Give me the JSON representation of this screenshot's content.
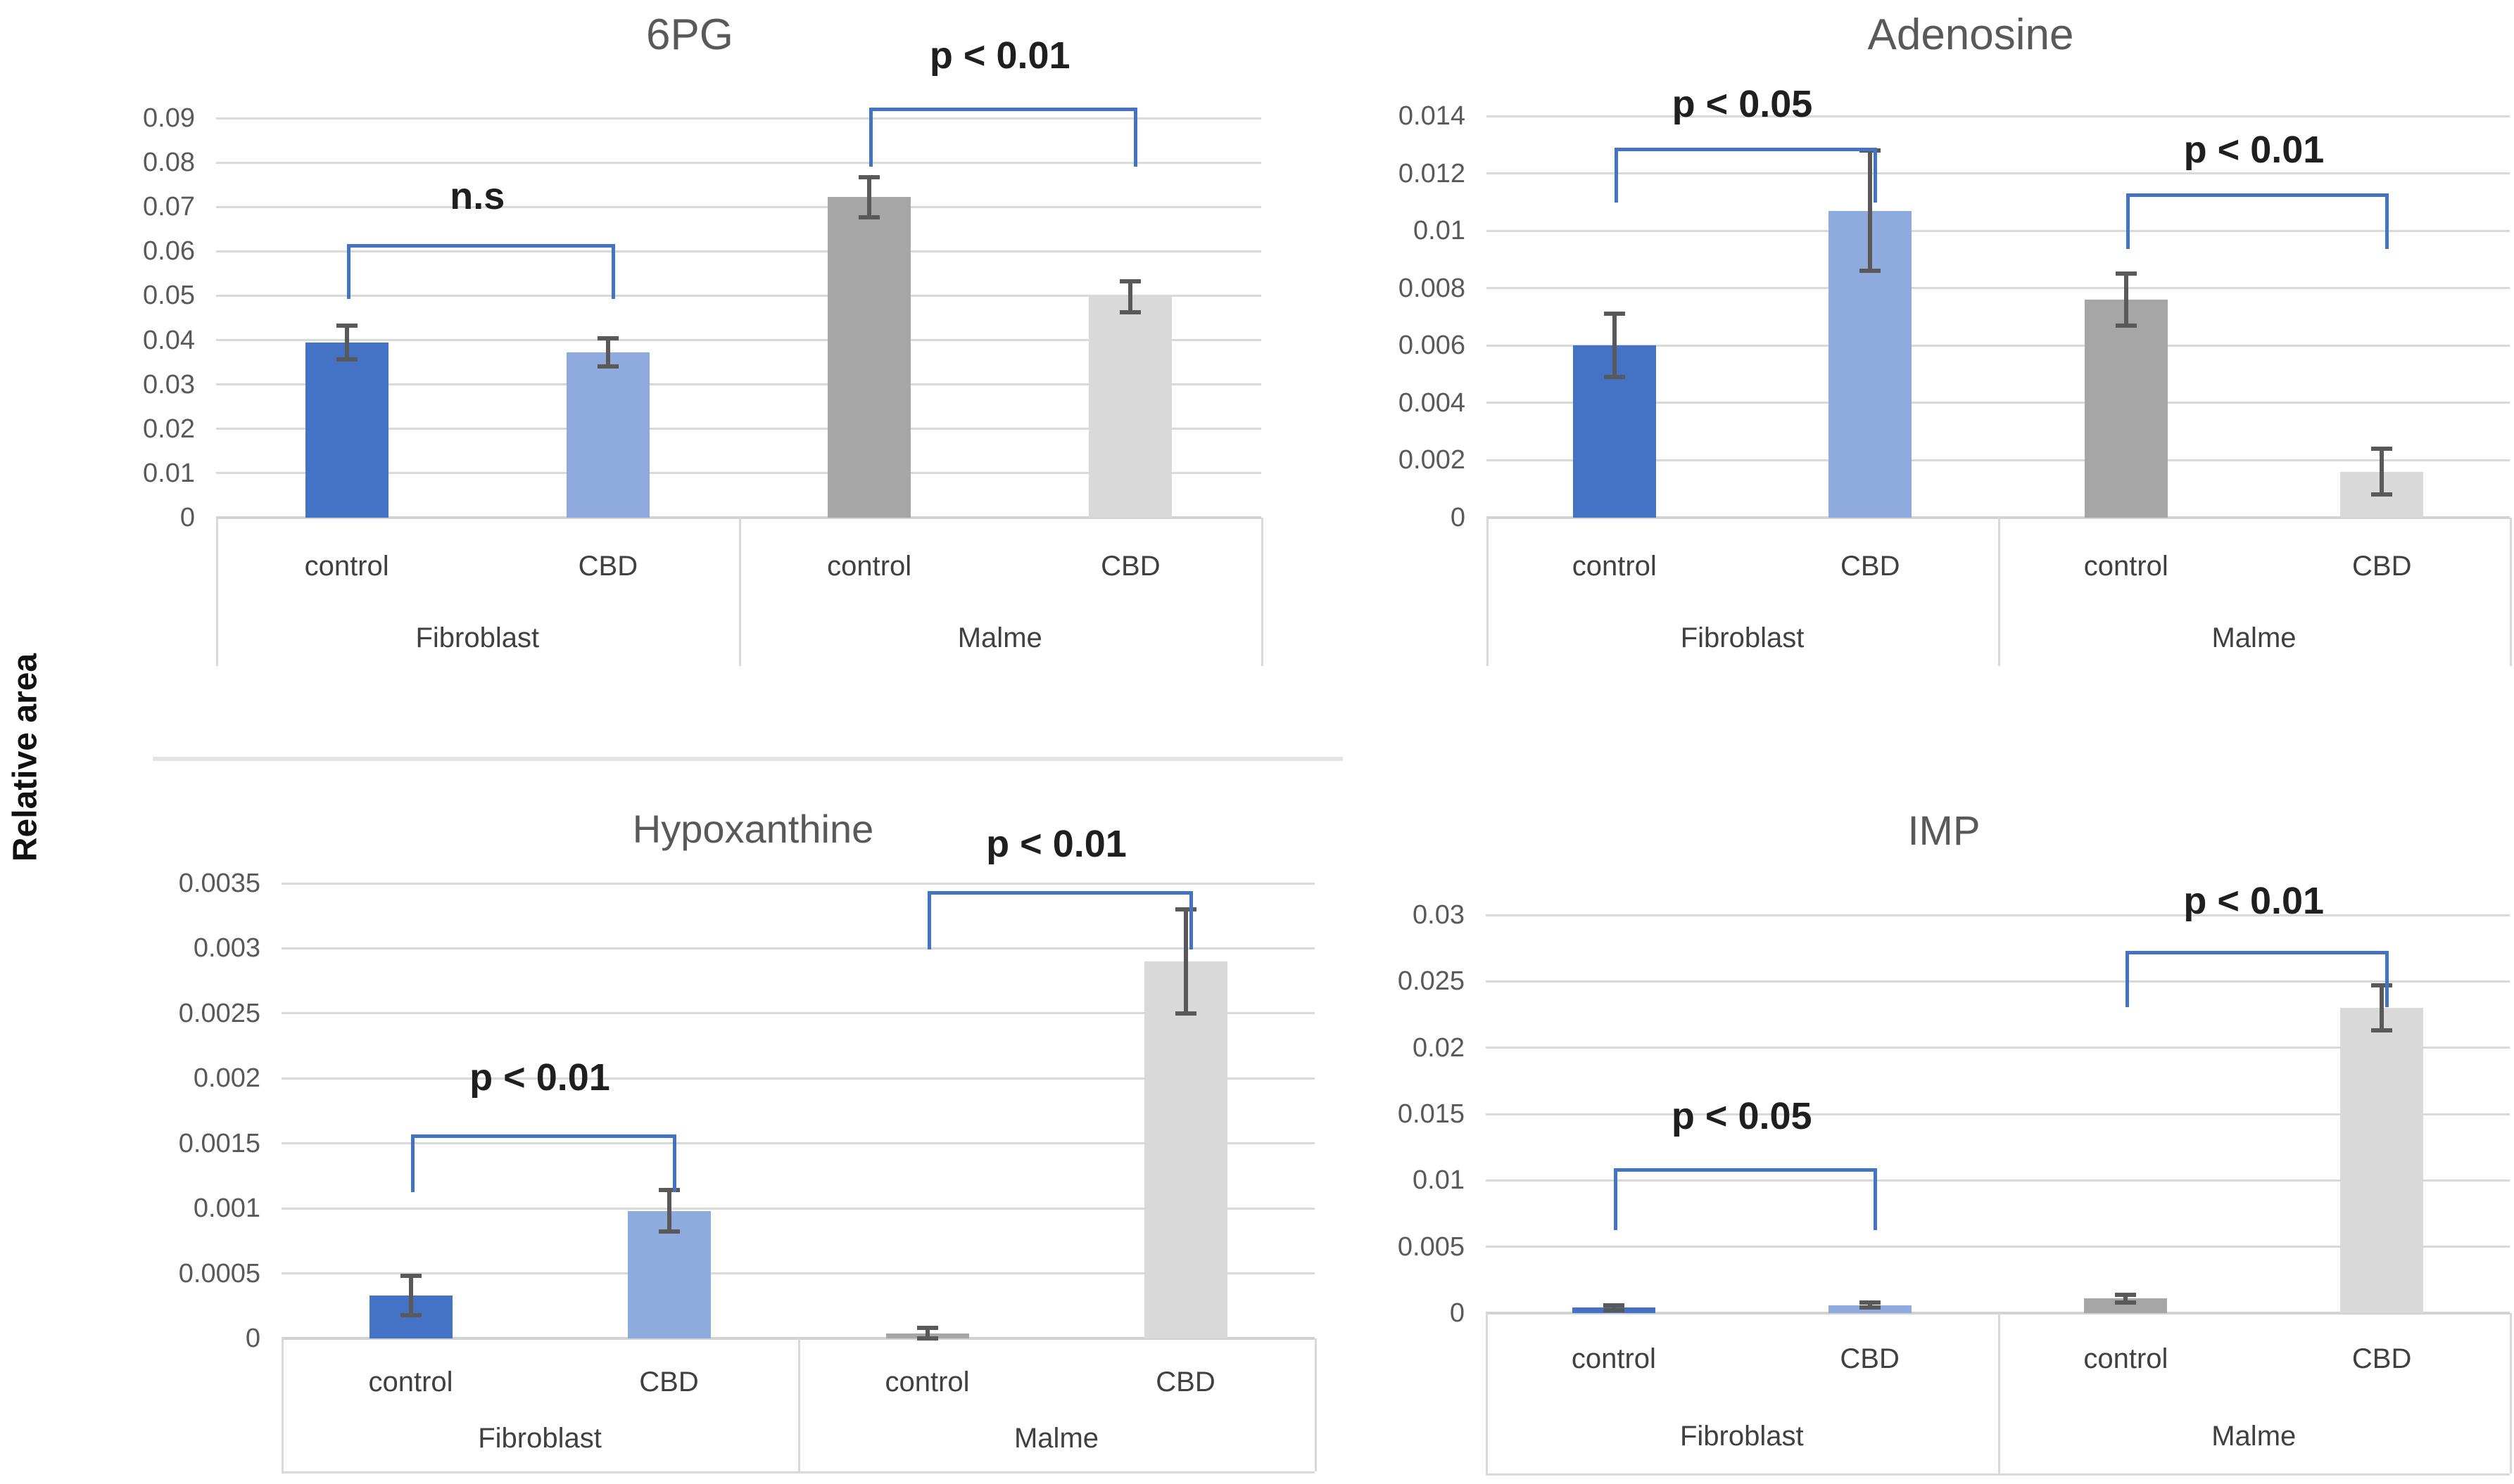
{
  "figure": {
    "shared_y_label": "Relative area"
  },
  "colors": {
    "bar_blue_dark": "#4472C4",
    "bar_blue_light": "#8FAADC",
    "bar_gray_dark": "#A6A6A6",
    "bar_gray_light": "#D9D9D9",
    "gridline": "#D9D9D9",
    "axis_border": "#D9D9D9",
    "error_bar": "#595959",
    "bracket": "#4472C4",
    "title_text": "#595959",
    "tick_text": "#595959",
    "category_text": "#404040",
    "annotation_text": "#1f1f1f"
  },
  "chart_data": [
    {
      "id": "sixpg",
      "type": "bar",
      "title": "6PG",
      "ylabel": "Relative area",
      "ylim": [
        0,
        0.09
      ],
      "ytick_step": 0.01,
      "ytick_labels": [
        "0",
        "0.01",
        "0.02",
        "0.03",
        "0.04",
        "0.05",
        "0.06",
        "0.07",
        "0.08",
        "0.09"
      ],
      "grid": true,
      "legend": "none",
      "categories": [
        "Fibroblast",
        "Malme"
      ],
      "subcategories": [
        "control",
        "CBD"
      ],
      "series": [
        {
          "group": "Fibroblast",
          "condition": "control",
          "value": 0.0395,
          "error": 0.0038,
          "color": "bar_blue_dark"
        },
        {
          "group": "Fibroblast",
          "condition": "CBD",
          "value": 0.0372,
          "error": 0.0032,
          "color": "bar_blue_light"
        },
        {
          "group": "Malme",
          "condition": "control",
          "value": 0.0722,
          "error": 0.0045,
          "color": "bar_gray_dark"
        },
        {
          "group": "Malme",
          "condition": "CBD",
          "value": 0.0497,
          "error": 0.0035,
          "color": "bar_gray_light"
        }
      ],
      "annotations": [
        {
          "text": "n.s",
          "bars": [
            0,
            1
          ],
          "bracket_top": 0.0616,
          "bracket_bottom": 0.05,
          "label_y": 0.0722
        },
        {
          "text": "p < 0.01",
          "bars": [
            2,
            3
          ],
          "bracket_top": 0.0924,
          "bracket_bottom": 0.0798,
          "label_y": 0.104
        }
      ]
    },
    {
      "id": "adenosine",
      "type": "bar",
      "title": "Adenosine",
      "ylabel": "Relative area",
      "ylim": [
        0,
        0.014
      ],
      "ytick_step": 0.002,
      "ytick_labels": [
        "0",
        "0.002",
        "0.004",
        "0.006",
        "0.008",
        "0.01",
        "0.012",
        "0.014"
      ],
      "grid": true,
      "legend": "none",
      "categories": [
        "Fibroblast",
        "Malme"
      ],
      "subcategories": [
        "control",
        "CBD"
      ],
      "series": [
        {
          "group": "Fibroblast",
          "condition": "control",
          "value": 0.006,
          "error": 0.0011,
          "color": "bar_blue_dark"
        },
        {
          "group": "Fibroblast",
          "condition": "CBD",
          "value": 0.0107,
          "error": 0.0021,
          "color": "bar_blue_light"
        },
        {
          "group": "Malme",
          "condition": "control",
          "value": 0.0076,
          "error": 0.0009,
          "color": "bar_gray_dark"
        },
        {
          "group": "Malme",
          "condition": "CBD",
          "value": 0.0016,
          "error": 0.0008,
          "color": "bar_gray_light"
        }
      ],
      "annotations": [
        {
          "text": "p < 0.05",
          "bars": [
            0,
            1
          ],
          "bracket_top": 0.0129,
          "bracket_bottom": 0.0111,
          "label_y": 0.0144
        },
        {
          "text": "p < 0.01",
          "bars": [
            2,
            3
          ],
          "bracket_top": 0.0113,
          "bracket_bottom": 0.0095,
          "label_y": 0.0128
        }
      ]
    },
    {
      "id": "hypoxanthine",
      "type": "bar",
      "title": "Hypoxanthine",
      "ylabel": "Relative area",
      "ylim": [
        0,
        0.0035
      ],
      "ytick_step": 0.0005,
      "ytick_labels": [
        "0",
        "0.0005",
        "0.001",
        "0.0015",
        "0.002",
        "0.0025",
        "0.003",
        "0.0035"
      ],
      "grid": true,
      "legend": "none",
      "categories": [
        "Fibroblast",
        "Malme"
      ],
      "subcategories": [
        "control",
        "CBD"
      ],
      "series": [
        {
          "group": "Fibroblast",
          "condition": "control",
          "value": 0.00033,
          "error": 0.00015,
          "color": "bar_blue_dark"
        },
        {
          "group": "Fibroblast",
          "condition": "CBD",
          "value": 0.00098,
          "error": 0.00016,
          "color": "bar_blue_light"
        },
        {
          "group": "Malme",
          "condition": "control",
          "value": 4e-05,
          "error": 4e-05,
          "color": "bar_gray_dark"
        },
        {
          "group": "Malme",
          "condition": "CBD",
          "value": 0.0029,
          "error": 0.0004,
          "color": "bar_gray_light"
        }
      ],
      "annotations": [
        {
          "text": "p < 0.01",
          "bars": [
            0,
            1
          ],
          "bracket_top": 0.00157,
          "bracket_bottom": 0.00115,
          "label_y": 0.002
        },
        {
          "text": "p < 0.01",
          "bars": [
            2,
            3
          ],
          "bracket_top": 0.00344,
          "bracket_bottom": 0.00302,
          "label_y": 0.0038
        }
      ]
    },
    {
      "id": "imp",
      "type": "bar",
      "title": "IMP",
      "ylabel": "Relative area",
      "ylim": [
        0,
        0.03
      ],
      "ytick_step": 0.005,
      "ytick_labels": [
        "0",
        "0.005",
        "0.01",
        "0.015",
        "0.02",
        "0.025",
        "0.03"
      ],
      "grid": true,
      "legend": "none",
      "categories": [
        "Fibroblast",
        "Malme"
      ],
      "subcategories": [
        "control",
        "CBD"
      ],
      "series": [
        {
          "group": "Fibroblast",
          "condition": "control",
          "value": 0.0004,
          "error": 0.0002,
          "color": "bar_blue_dark"
        },
        {
          "group": "Fibroblast",
          "condition": "CBD",
          "value": 0.0006,
          "error": 0.0002,
          "color": "bar_blue_light"
        },
        {
          "group": "Malme",
          "condition": "control",
          "value": 0.0011,
          "error": 0.0003,
          "color": "bar_gray_dark"
        },
        {
          "group": "Malme",
          "condition": "CBD",
          "value": 0.023,
          "error": 0.0017,
          "color": "bar_gray_light"
        }
      ],
      "annotations": [
        {
          "text": "p < 0.05",
          "bars": [
            0,
            1
          ],
          "bracket_top": 0.0109,
          "bracket_bottom": 0.0065,
          "label_y": 0.0148
        },
        {
          "text": "p < 0.01",
          "bars": [
            2,
            3
          ],
          "bracket_top": 0.0273,
          "bracket_bottom": 0.0233,
          "label_y": 0.031
        }
      ]
    }
  ]
}
